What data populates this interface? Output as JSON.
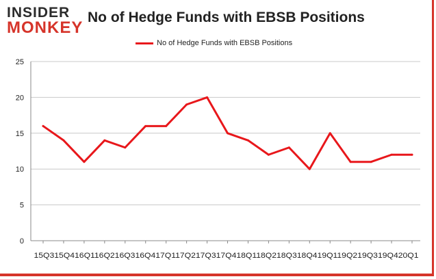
{
  "logo": {
    "line1": "INSIDER",
    "line2": "MONKEY"
  },
  "chart_data": {
    "type": "line",
    "title": "No of Hedge Funds with EBSB Positions",
    "legend_position": "top",
    "grid": true,
    "ylim": [
      0,
      25
    ],
    "yticks": [
      0,
      5,
      10,
      15,
      20,
      25
    ],
    "tick_label_strip": "15Q315Q416Q116Q216Q316Q417Q117Q217Q317Q418Q118Q218Q318Q419Q119Q219Q319Q420Q1",
    "categories": [
      "15Q3",
      "15Q4",
      "16Q1",
      "16Q2",
      "16Q3",
      "16Q4",
      "17Q1",
      "17Q2",
      "17Q3",
      "17Q4",
      "18Q1",
      "18Q2",
      "18Q3",
      "18Q4",
      "19Q1",
      "19Q2",
      "19Q3",
      "19Q4",
      "20Q1"
    ],
    "series": [
      {
        "name": "No of Hedge Funds with EBSB Positions",
        "color": "#e8171b",
        "values": [
          16,
          14,
          11,
          14,
          13,
          16,
          16,
          19,
          20,
          15,
          14,
          12,
          13,
          10,
          15,
          11,
          11,
          12,
          12
        ]
      }
    ]
  }
}
